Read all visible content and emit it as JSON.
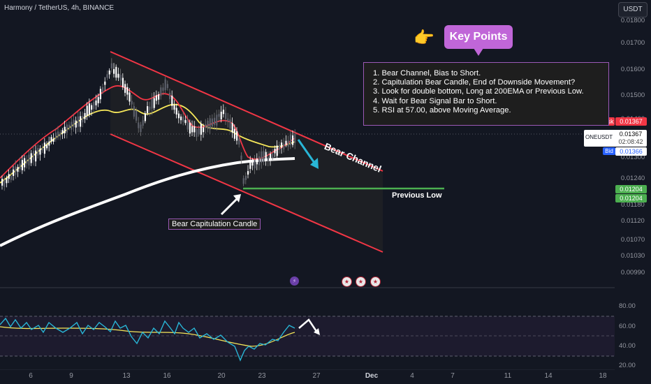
{
  "header": {
    "title": "Harmony / TetherUS, 4h, BINANCE"
  },
  "currency": "USDT",
  "price_axis": {
    "ticks": [
      "0.01800",
      "0.01700",
      "0.01600",
      "0.01500",
      "0.01400",
      "0.01300",
      "0.01240",
      "0.01180",
      "0.01120",
      "0.01070",
      "0.01030",
      "0.00990"
    ]
  },
  "tags": {
    "ask_label": "Ask",
    "ask_value": "0.01367",
    "symbol": "ONEUSDT",
    "last_value": "0.01367",
    "countdown": "02:08:42",
    "bid_label": "Bid",
    "bid_value": "0.01366",
    "low1": "0.01204",
    "low2": "0.01204"
  },
  "annotations": {
    "key_points_title": "Key Points",
    "notes": [
      "1. Bear Channel, Bias to Short.",
      "2. Capitulation Bear Candle, End of Downside Movement?",
      "3. Look for double bottom, Long at 200EMA or Previous Low.",
      "4. Wait for Bear Signal Bar to Short.",
      "5. RSI at 57.00, above Moving Average."
    ],
    "capitulation": "Bear Capitulation Candle",
    "previous_low": "Previous Low",
    "bear_channel": "Bear Channel"
  },
  "rsi_axis": {
    "ticks": [
      "80.00",
      "60.00",
      "40.00",
      "20.00"
    ]
  },
  "time_axis": {
    "ticks": [
      "6",
      "9",
      "13",
      "16",
      "20",
      "23",
      "27",
      "Dec",
      "4",
      "7",
      "11",
      "14",
      "18"
    ]
  },
  "colors": {
    "background": "#131722",
    "channel": "#f23645",
    "ema_fast": "#f23645",
    "ema_mid": "#f7e85a",
    "ema_200": "#ffffff",
    "previous_low_line": "#4caf50",
    "arrow": "#29b6d6",
    "rsi_line": "#29b6d6",
    "rsi_ma": "#f7e85a",
    "bull_candle": "#ffffff",
    "bear_candle": "#555555"
  }
}
